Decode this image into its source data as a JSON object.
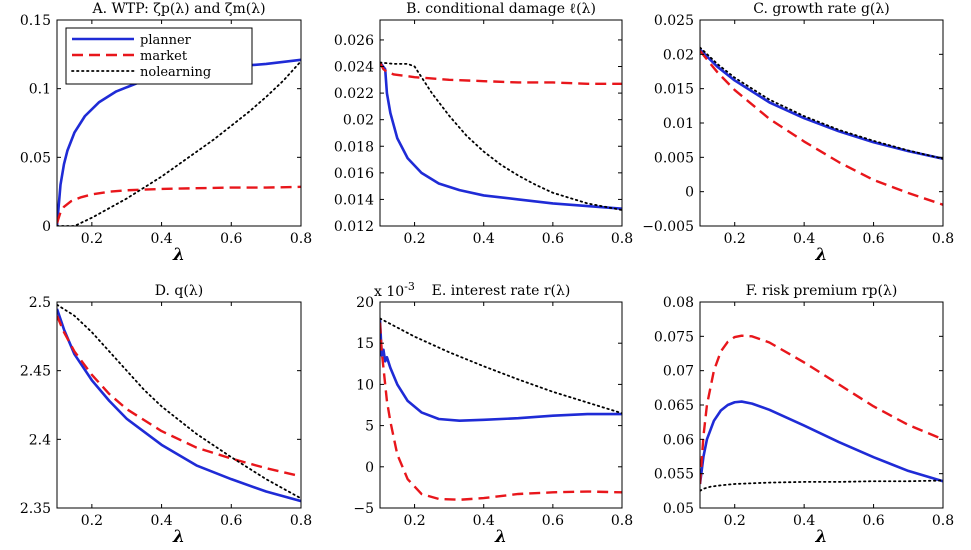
{
  "colors": {
    "planner": "#1f2bd6",
    "market": "#e8161b",
    "nolearning": "#000000"
  },
  "chart_data": [
    {
      "type": "line",
      "title": "A. WTP: ζp(λ) and ζm(λ)",
      "xlabel": "λ",
      "xlim": [
        0.1,
        0.8
      ],
      "ylim": [
        0,
        0.15
      ],
      "xticks": [
        0.2,
        0.4,
        0.6,
        0.8
      ],
      "xtick_labels": [
        "0.2",
        "0.4",
        "0.6",
        "0.8"
      ],
      "yticks": [
        0,
        0.05,
        0.1,
        0.15
      ],
      "ytick_labels": [
        "0",
        "0.05",
        "0.1",
        "0.15"
      ],
      "legend": [
        "planner",
        "market",
        "nolearning"
      ],
      "legend_loc": "top-left",
      "series": [
        {
          "name": "planner",
          "style": "solid",
          "x": [
            0.1,
            0.11,
            0.12,
            0.13,
            0.15,
            0.18,
            0.22,
            0.27,
            0.33,
            0.4,
            0.5,
            0.6,
            0.7,
            0.8
          ],
          "y": [
            0.0,
            0.03,
            0.045,
            0.055,
            0.068,
            0.08,
            0.09,
            0.098,
            0.104,
            0.109,
            0.113,
            0.116,
            0.118,
            0.121
          ]
        },
        {
          "name": "market",
          "style": "dashed",
          "x": [
            0.1,
            0.11,
            0.12,
            0.14,
            0.17,
            0.2,
            0.25,
            0.3,
            0.4,
            0.5,
            0.6,
            0.7,
            0.8
          ],
          "y": [
            0.002,
            0.01,
            0.014,
            0.018,
            0.021,
            0.023,
            0.025,
            0.026,
            0.027,
            0.0275,
            0.028,
            0.028,
            0.0285
          ]
        },
        {
          "name": "nolearning",
          "style": "dotted",
          "x": [
            0.1,
            0.15,
            0.2,
            0.25,
            0.3,
            0.35,
            0.4,
            0.45,
            0.5,
            0.55,
            0.6,
            0.65,
            0.7,
            0.75,
            0.8
          ],
          "y": [
            0.0,
            0.0,
            0.006,
            0.013,
            0.02,
            0.028,
            0.036,
            0.045,
            0.054,
            0.063,
            0.073,
            0.083,
            0.094,
            0.106,
            0.12
          ]
        }
      ]
    },
    {
      "type": "line",
      "title": "B. conditional damage ℓ(λ)",
      "xlabel": "",
      "xlim": [
        0.1,
        0.8
      ],
      "ylim": [
        0.012,
        0.0275
      ],
      "xticks": [
        0.2,
        0.4,
        0.6,
        0.8
      ],
      "xtick_labels": [
        "0.2",
        "0.4",
        "0.6",
        "0.8"
      ],
      "yticks": [
        0.012,
        0.014,
        0.016,
        0.018,
        0.02,
        0.022,
        0.024,
        0.026
      ],
      "ytick_labels": [
        "0.012",
        "0.014",
        "0.016",
        "0.018",
        "0.02",
        "0.022",
        "0.024",
        "0.026"
      ],
      "series": [
        {
          "name": "planner",
          "style": "solid",
          "x": [
            0.1,
            0.115,
            0.12,
            0.13,
            0.15,
            0.18,
            0.22,
            0.27,
            0.33,
            0.4,
            0.5,
            0.6,
            0.7,
            0.8
          ],
          "y": [
            0.0243,
            0.0238,
            0.022,
            0.0205,
            0.0186,
            0.0171,
            0.016,
            0.0152,
            0.0147,
            0.0143,
            0.014,
            0.0137,
            0.0135,
            0.0133
          ]
        },
        {
          "name": "market",
          "style": "dashed",
          "x": [
            0.1,
            0.11,
            0.12,
            0.14,
            0.2,
            0.3,
            0.4,
            0.5,
            0.6,
            0.7,
            0.8
          ],
          "y": [
            0.0243,
            0.0238,
            0.0236,
            0.0234,
            0.0232,
            0.023,
            0.0229,
            0.0228,
            0.0228,
            0.0227,
            0.0227
          ]
        },
        {
          "name": "nolearning",
          "style": "dotted",
          "x": [
            0.1,
            0.14,
            0.18,
            0.2,
            0.22,
            0.25,
            0.3,
            0.35,
            0.4,
            0.45,
            0.5,
            0.55,
            0.6,
            0.7,
            0.8
          ],
          "y": [
            0.0243,
            0.0242,
            0.0242,
            0.024,
            0.0232,
            0.022,
            0.0203,
            0.0188,
            0.0176,
            0.0166,
            0.0158,
            0.0151,
            0.0145,
            0.0137,
            0.0132
          ]
        }
      ]
    },
    {
      "type": "line",
      "title": "C. growth rate g(λ)",
      "xlabel": "λ",
      "xlim": [
        0.1,
        0.8
      ],
      "ylim": [
        -0.005,
        0.025
      ],
      "xticks": [
        0.2,
        0.4,
        0.6,
        0.8
      ],
      "xtick_labels": [
        "0.2",
        "0.4",
        "0.6",
        "0.8"
      ],
      "yticks": [
        -0.005,
        0,
        0.005,
        0.01,
        0.015,
        0.02,
        0.025
      ],
      "ytick_labels": [
        "−0.005",
        "0",
        "0.005",
        "0.01",
        "0.015",
        "0.02",
        "0.025"
      ],
      "series": [
        {
          "name": "planner",
          "style": "solid",
          "x": [
            0.1,
            0.15,
            0.2,
            0.3,
            0.4,
            0.5,
            0.6,
            0.7,
            0.8
          ],
          "y": [
            0.0207,
            0.0182,
            0.0162,
            0.013,
            0.0107,
            0.0088,
            0.0072,
            0.0059,
            0.0048
          ]
        },
        {
          "name": "market",
          "style": "dashed",
          "x": [
            0.1,
            0.15,
            0.2,
            0.3,
            0.4,
            0.5,
            0.6,
            0.7,
            0.8
          ],
          "y": [
            0.0205,
            0.0174,
            0.0148,
            0.0106,
            0.0073,
            0.0043,
            0.0017,
            -0.0002,
            -0.0019
          ]
        },
        {
          "name": "nolearning",
          "style": "dotted",
          "x": [
            0.1,
            0.15,
            0.2,
            0.3,
            0.4,
            0.5,
            0.6,
            0.7,
            0.8
          ],
          "y": [
            0.021,
            0.0186,
            0.0166,
            0.0134,
            0.011,
            0.009,
            0.0074,
            0.006,
            0.0048
          ]
        }
      ]
    },
    {
      "type": "line",
      "title": "D. q(λ)",
      "xlabel": "λ",
      "xlim": [
        0.1,
        0.8
      ],
      "ylim": [
        2.35,
        2.5
      ],
      "xticks": [
        0.2,
        0.4,
        0.6,
        0.8
      ],
      "xtick_labels": [
        "0.2",
        "0.4",
        "0.6",
        "0.8"
      ],
      "yticks": [
        2.35,
        2.4,
        2.45,
        2.5
      ],
      "ytick_labels": [
        "2.35",
        "2.4",
        "2.45",
        "2.5"
      ],
      "series": [
        {
          "name": "planner",
          "style": "solid",
          "x": [
            0.1,
            0.12,
            0.15,
            0.2,
            0.25,
            0.3,
            0.4,
            0.5,
            0.6,
            0.7,
            0.8
          ],
          "y": [
            2.495,
            2.48,
            2.462,
            2.443,
            2.428,
            2.415,
            2.396,
            2.381,
            2.371,
            2.362,
            2.355
          ]
        },
        {
          "name": "market",
          "style": "dashed",
          "x": [
            0.1,
            0.12,
            0.15,
            0.2,
            0.25,
            0.3,
            0.4,
            0.5,
            0.6,
            0.7,
            0.8
          ],
          "y": [
            2.49,
            2.478,
            2.464,
            2.447,
            2.433,
            2.422,
            2.406,
            2.394,
            2.386,
            2.379,
            2.373
          ]
        },
        {
          "name": "nolearning",
          "style": "dotted",
          "x": [
            0.1,
            0.15,
            0.2,
            0.25,
            0.3,
            0.35,
            0.4,
            0.5,
            0.6,
            0.7,
            0.8
          ],
          "y": [
            2.498,
            2.49,
            2.478,
            2.464,
            2.45,
            2.436,
            2.424,
            2.404,
            2.387,
            2.371,
            2.357
          ]
        }
      ]
    },
    {
      "type": "line",
      "title": "E. interest rate r(λ)",
      "xlabel": "λ",
      "multiplier": "x 10",
      "multiplier_exp": "-3",
      "xlim": [
        0.1,
        0.8
      ],
      "ylim": [
        -5,
        20
      ],
      "xticks": [
        0.2,
        0.4,
        0.6,
        0.8
      ],
      "xtick_labels": [
        "0.2",
        "0.4",
        "0.6",
        "0.8"
      ],
      "yticks": [
        -5,
        0,
        5,
        10,
        15,
        20
      ],
      "ytick_labels": [
        "−5",
        "0",
        "5",
        "10",
        "15",
        "20"
      ],
      "series": [
        {
          "name": "planner",
          "style": "solid",
          "x": [
            0.1,
            0.105,
            0.11,
            0.115,
            0.12,
            0.13,
            0.15,
            0.18,
            0.22,
            0.27,
            0.33,
            0.4,
            0.5,
            0.6,
            0.7,
            0.8
          ],
          "y": [
            17.8,
            13.5,
            14.2,
            12.8,
            13.3,
            12.0,
            10.0,
            8.0,
            6.6,
            5.8,
            5.6,
            5.7,
            5.9,
            6.2,
            6.4,
            6.4
          ]
        },
        {
          "name": "market",
          "style": "dashed",
          "x": [
            0.1,
            0.105,
            0.11,
            0.12,
            0.13,
            0.15,
            0.18,
            0.22,
            0.27,
            0.33,
            0.4,
            0.5,
            0.6,
            0.7,
            0.8
          ],
          "y": [
            17.5,
            14.0,
            12.0,
            8.0,
            5.5,
            1.5,
            -1.5,
            -3.3,
            -3.9,
            -4.0,
            -3.8,
            -3.3,
            -3.1,
            -3.0,
            -3.1
          ]
        },
        {
          "name": "nolearning",
          "style": "dotted",
          "x": [
            0.1,
            0.15,
            0.2,
            0.3,
            0.4,
            0.5,
            0.6,
            0.7,
            0.8
          ],
          "y": [
            18.0,
            16.9,
            15.8,
            13.9,
            12.2,
            10.6,
            9.1,
            7.8,
            6.5
          ]
        }
      ]
    },
    {
      "type": "line",
      "title": "F. risk premium rp(λ)",
      "xlabel": "λ",
      "xlim": [
        0.1,
        0.8
      ],
      "ylim": [
        0.05,
        0.08
      ],
      "xticks": [
        0.2,
        0.4,
        0.6,
        0.8
      ],
      "xtick_labels": [
        "0.2",
        "0.4",
        "0.6",
        "0.8"
      ],
      "yticks": [
        0.05,
        0.055,
        0.06,
        0.065,
        0.07,
        0.075,
        0.08
      ],
      "ytick_labels": [
        "0.05",
        "0.055",
        "0.06",
        "0.065",
        "0.07",
        "0.075",
        "0.08"
      ],
      "series": [
        {
          "name": "planner",
          "style": "solid",
          "x": [
            0.1,
            0.11,
            0.12,
            0.14,
            0.16,
            0.18,
            0.2,
            0.22,
            0.25,
            0.3,
            0.4,
            0.5,
            0.6,
            0.7,
            0.8
          ],
          "y": [
            0.0535,
            0.0575,
            0.06,
            0.0627,
            0.0642,
            0.065,
            0.0654,
            0.0655,
            0.0652,
            0.0643,
            0.062,
            0.0596,
            0.0574,
            0.0554,
            0.0539
          ]
        },
        {
          "name": "market",
          "style": "dashed",
          "x": [
            0.1,
            0.11,
            0.12,
            0.14,
            0.16,
            0.18,
            0.2,
            0.22,
            0.25,
            0.3,
            0.4,
            0.5,
            0.6,
            0.7,
            0.8
          ],
          "y": [
            0.0535,
            0.0605,
            0.065,
            0.07,
            0.0728,
            0.0742,
            0.0749,
            0.0751,
            0.075,
            0.0741,
            0.0712,
            0.068,
            0.0648,
            0.0621,
            0.06
          ]
        },
        {
          "name": "nolearning",
          "style": "dotted",
          "x": [
            0.1,
            0.11,
            0.13,
            0.16,
            0.2,
            0.3,
            0.4,
            0.5,
            0.6,
            0.7,
            0.8
          ],
          "y": [
            0.0525,
            0.0528,
            0.0531,
            0.0533,
            0.0535,
            0.0537,
            0.0538,
            0.0538,
            0.0539,
            0.0539,
            0.054
          ]
        }
      ]
    }
  ]
}
